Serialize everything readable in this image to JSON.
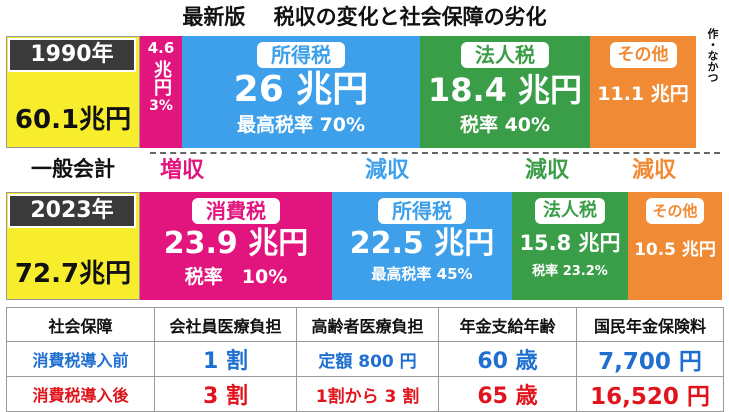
{
  "title": "最新版　 税収の変化と社会保障の劣化",
  "credit": "作・なかつ",
  "row1990": {
    "year": "1990年",
    "total": "60.1兆円",
    "consumption": {
      "value_top": "4.6",
      "value_unit": "兆円",
      "rate": "3%"
    },
    "income": {
      "label": "所得税",
      "value": "26 兆円",
      "rate": "最高税率 70%"
    },
    "corporate": {
      "label": "法人税",
      "value": "18.4 兆円",
      "rate": "税率 40%"
    },
    "other": {
      "label": "その他",
      "value": "11.1 兆円"
    }
  },
  "general_account": "一般会計",
  "changes": {
    "consumption": "増収",
    "income": "減収",
    "corporate": "減収",
    "other": "減収"
  },
  "row2023": {
    "year": "2023年",
    "total": "72.7兆円",
    "consumption": {
      "label": "消費税",
      "value": "23.9 兆円",
      "rate": "税率　10%"
    },
    "income": {
      "label": "所得税",
      "value": "22.5 兆円",
      "rate": "最高税率 45%"
    },
    "corporate": {
      "label": "法人税",
      "value": "15.8 兆円",
      "rate": "税率 23.2%"
    },
    "other": {
      "label": "その他",
      "value": "10.5 兆円"
    }
  },
  "table": {
    "headers": [
      "社会保障",
      "会社員医療負担",
      "高齢者医療負担",
      "年金支給年齢",
      "国民年金保険料"
    ],
    "rows": [
      [
        "消費税導入前",
        "1 割",
        "定額 800 円",
        "60 歳",
        "7,700 円"
      ],
      [
        "消費税導入後",
        "3 割",
        "1割から 3 割",
        "65 歳",
        "16,520 円"
      ]
    ]
  },
  "colors": {
    "pink": "#e2157e",
    "blue": "#3ea0ea",
    "green": "#3a9d47",
    "orange": "#f08a34",
    "yellow": "#f7ed2c",
    "dark": "#3a3a3a",
    "red": "#e0141c",
    "text_blue": "#1e6fd0"
  }
}
